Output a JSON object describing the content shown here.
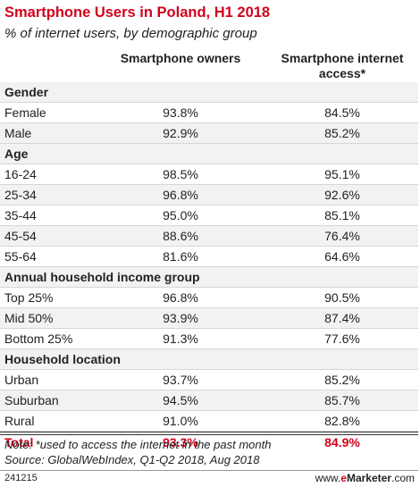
{
  "header": {
    "title": "Smartphone Users in Poland, H1 2018",
    "subtitle": "% of internet users, by demographic group"
  },
  "colors": {
    "accent": "#d0021b",
    "section_bg": "#f2f2f2",
    "row_alt_bg": "#f2f2f2"
  },
  "chart_data": {
    "type": "table",
    "title": "Smartphone Users in Poland, H1 2018",
    "subtitle": "% of internet users, by demographic group",
    "columns": [
      "Smartphone owners",
      "Smartphone internet access*"
    ],
    "rows": [
      {
        "label": "Gender",
        "section": true
      },
      {
        "label": "Female",
        "values": [
          "93.8%",
          "84.5%"
        ]
      },
      {
        "label": "Male",
        "values": [
          "92.9%",
          "85.2%"
        ]
      },
      {
        "label": "Age",
        "section": true
      },
      {
        "label": "16-24",
        "values": [
          "98.5%",
          "95.1%"
        ]
      },
      {
        "label": "25-34",
        "values": [
          "96.8%",
          "92.6%"
        ]
      },
      {
        "label": "35-44",
        "values": [
          "95.0%",
          "85.1%"
        ]
      },
      {
        "label": "45-54",
        "values": [
          "88.6%",
          "76.4%"
        ]
      },
      {
        "label": "55-64",
        "values": [
          "81.6%",
          "64.6%"
        ]
      },
      {
        "label": "Annual household income group",
        "section": true
      },
      {
        "label": "Top 25%",
        "values": [
          "96.8%",
          "90.5%"
        ]
      },
      {
        "label": "Mid 50%",
        "values": [
          "93.9%",
          "87.4%"
        ]
      },
      {
        "label": "Bottom 25%",
        "values": [
          "91.3%",
          "77.6%"
        ]
      },
      {
        "label": "Household location",
        "section": true
      },
      {
        "label": "Urban",
        "values": [
          "93.7%",
          "85.2%"
        ]
      },
      {
        "label": "Suburban",
        "values": [
          "94.5%",
          "85.7%"
        ]
      },
      {
        "label": "Rural",
        "values": [
          "91.0%",
          "82.8%"
        ]
      }
    ],
    "total": {
      "label": "Total",
      "values": [
        "93.3%",
        "84.9%"
      ]
    }
  },
  "footer": {
    "note": "Note: *used to access the internet in the past month",
    "source": "Source: GlobalWebIndex, Q1-Q2 2018, Aug 2018",
    "chart_id": "241215",
    "brand_prefix": "www.",
    "brand_e": "e",
    "brand_rest": "Marketer",
    "brand_suffix": ".com"
  }
}
